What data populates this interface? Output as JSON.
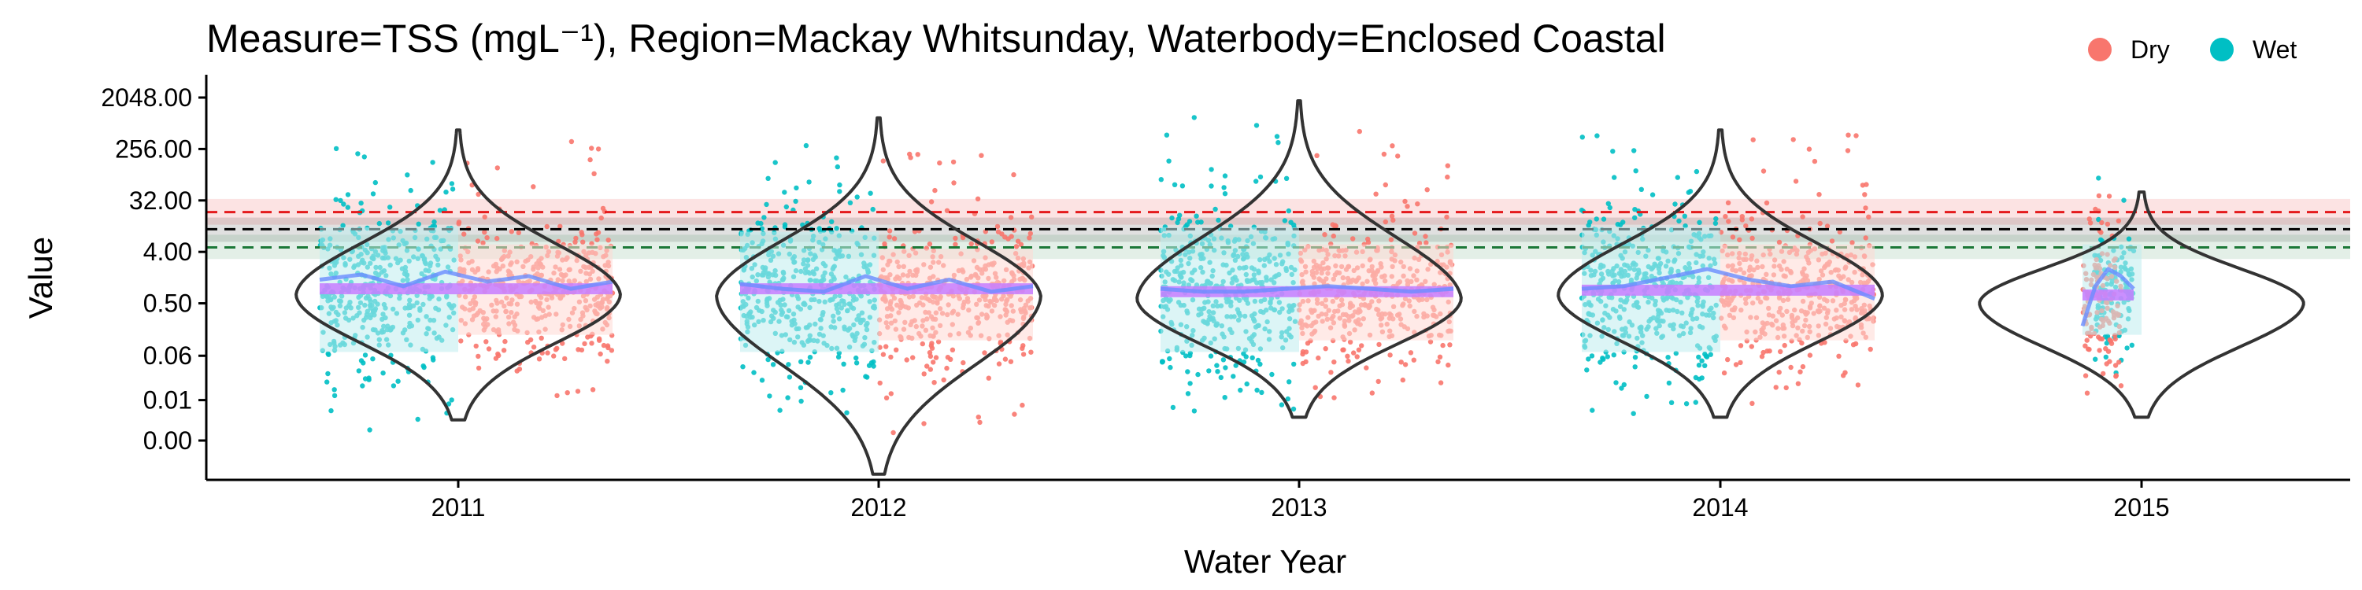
{
  "chart_data": {
    "type": "scatter",
    "title": "Measure=TSS (mgL⁻¹), Region=Mackay Whitsunday, Waterbody=Enclosed Coastal",
    "xlabel": "Water Year",
    "ylabel": "Value",
    "y_scale": "log2",
    "y_ticks": [
      0.0,
      0.01,
      0.06,
      0.5,
      4.0,
      32.0,
      256.0,
      2048.0
    ],
    "y_tick_labels": [
      "0.00",
      "0.01",
      "0.06",
      "0.50",
      "4.00",
      "32.00",
      "256.00",
      "2048.00"
    ],
    "x_tick_labels": [
      "2011",
      "2012",
      "2013",
      "2014",
      "2015"
    ],
    "legend": {
      "position": "top-right",
      "items": [
        {
          "label": "Dry",
          "color": "#F8766D"
        },
        {
          "label": "Wet",
          "color": "#00BFC4"
        }
      ]
    },
    "guidelines": [
      {
        "name": "upper",
        "value": 20,
        "color": "#E41A1C",
        "band": [
          12,
          34
        ]
      },
      {
        "name": "median",
        "value": 10,
        "color": "#000000",
        "band": [
          6,
          16
        ]
      },
      {
        "name": "lower",
        "value": 4.8,
        "color": "#1B7837",
        "band": [
          3,
          8
        ]
      }
    ],
    "years": [
      {
        "label": "2011",
        "median": 0.9,
        "violin": {
          "min": 0.0045,
          "max": 550,
          "mode": 0.7
        },
        "wet": {
          "range": [
            0.003,
            420
          ],
          "core": [
            0.05,
            12
          ]
        },
        "dry": {
          "range": [
            0.012,
            400
          ],
          "core": [
            0.1,
            6
          ]
        },
        "trend": [
          1.3,
          1.6,
          1.0,
          1.8,
          1.2,
          1.5,
          0.9,
          1.2
        ]
      },
      {
        "label": "2012",
        "median": 0.9,
        "violin": {
          "min": 0.0005,
          "max": 900,
          "mode": 0.65
        },
        "wet": {
          "range": [
            0.006,
            300
          ],
          "core": [
            0.05,
            10
          ]
        },
        "dry": {
          "range": [
            0.001,
            500
          ],
          "core": [
            0.08,
            5
          ]
        },
        "trend": [
          1.1,
          0.9,
          0.8,
          1.5,
          0.9,
          1.3,
          0.8,
          1.0
        ]
      },
      {
        "label": "2013",
        "median": 0.8,
        "violin": {
          "min": 0.005,
          "max": 1800,
          "mode": 0.6
        },
        "wet": {
          "range": [
            0.006,
            1500
          ],
          "core": [
            0.05,
            12
          ]
        },
        "dry": {
          "range": [
            0.006,
            600
          ],
          "core": [
            0.08,
            6
          ]
        },
        "trend": [
          0.9,
          0.8,
          0.8,
          0.9,
          1.0,
          0.9,
          0.8,
          0.9
        ]
      },
      {
        "label": "2014",
        "median": 0.85,
        "violin": {
          "min": 0.005,
          "max": 550,
          "mode": 0.7
        },
        "wet": {
          "range": [
            0.005,
            450
          ],
          "core": [
            0.05,
            12
          ]
        },
        "dry": {
          "range": [
            0.008,
            500
          ],
          "core": [
            0.08,
            6
          ]
        },
        "trend": [
          0.9,
          1.0,
          1.4,
          2.0,
          1.3,
          1.0,
          1.2,
          0.6
        ]
      },
      {
        "label": "2015",
        "median": 0.7,
        "violin": {
          "min": 0.005,
          "max": 45,
          "mode": 0.5
        },
        "wet": {
          "range": [
            0.03,
            80
          ],
          "core": [
            0.1,
            6
          ]
        },
        "dry": {
          "range": [
            0.008,
            150
          ],
          "core": [
            0.05,
            4
          ]
        },
        "trend": [
          0.2,
          1.0,
          2.0,
          1.5,
          0.9
        ]
      }
    ]
  }
}
